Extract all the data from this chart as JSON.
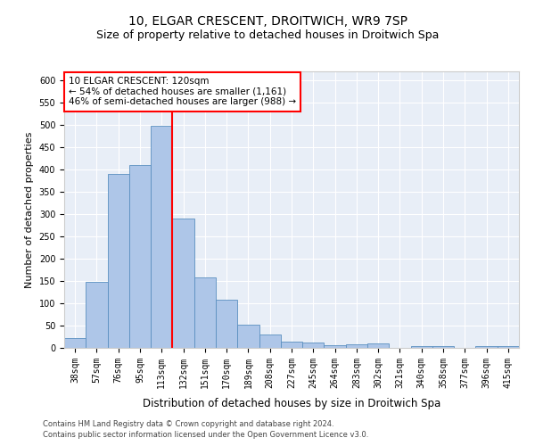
{
  "title1": "10, ELGAR CRESCENT, DROITWICH, WR9 7SP",
  "title2": "Size of property relative to detached houses in Droitwich Spa",
  "xlabel": "Distribution of detached houses by size in Droitwich Spa",
  "ylabel": "Number of detached properties",
  "categories": [
    "38sqm",
    "57sqm",
    "76sqm",
    "95sqm",
    "113sqm",
    "132sqm",
    "151sqm",
    "170sqm",
    "189sqm",
    "208sqm",
    "227sqm",
    "245sqm",
    "264sqm",
    "283sqm",
    "302sqm",
    "321sqm",
    "340sqm",
    "358sqm",
    "377sqm",
    "396sqm",
    "415sqm"
  ],
  "values": [
    23,
    148,
    390,
    410,
    498,
    290,
    158,
    108,
    53,
    30,
    15,
    12,
    6,
    8,
    10,
    0,
    4,
    4,
    0,
    5,
    4
  ],
  "bar_color": "#aec6e8",
  "bar_edge_color": "#5a8fc0",
  "highlight_bar_index": 4,
  "annotation_text": "10 ELGAR CRESCENT: 120sqm\n← 54% of detached houses are smaller (1,161)\n46% of semi-detached houses are larger (988) →",
  "annotation_box_color": "white",
  "annotation_box_edge": "red",
  "footer1": "Contains HM Land Registry data © Crown copyright and database right 2024.",
  "footer2": "Contains public sector information licensed under the Open Government Licence v3.0.",
  "ylim": [
    0,
    620
  ],
  "yticks": [
    0,
    50,
    100,
    150,
    200,
    250,
    300,
    350,
    400,
    450,
    500,
    550,
    600
  ],
  "bg_color": "#e8eef7",
  "grid_color": "white",
  "title1_fontsize": 10,
  "title2_fontsize": 9,
  "annotation_fontsize": 7.5,
  "xlabel_fontsize": 8.5,
  "ylabel_fontsize": 8,
  "tick_fontsize": 7
}
